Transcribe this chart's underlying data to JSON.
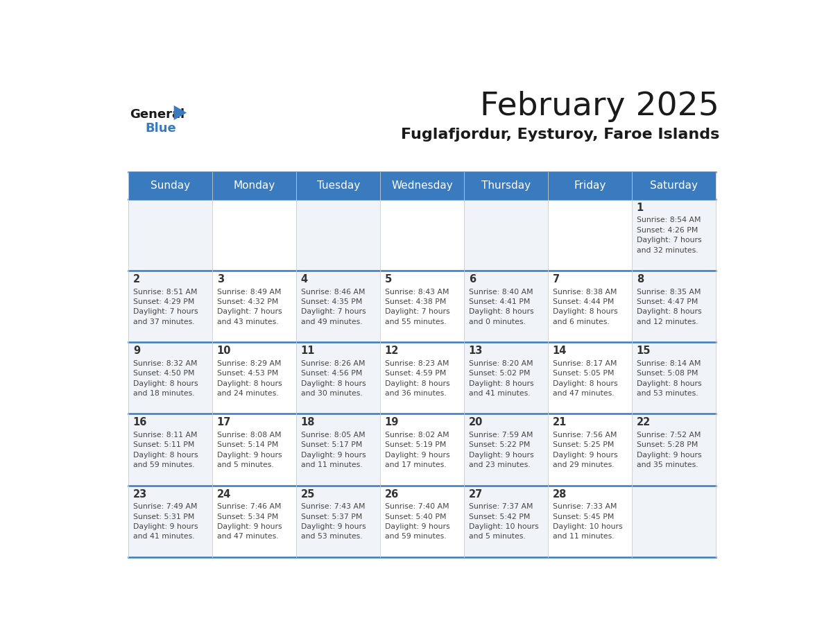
{
  "title": "February 2025",
  "subtitle": "Fuglafjordur, Eysturoy, Faroe Islands",
  "header_color": "#3a7abf",
  "header_text_color": "#ffffff",
  "cell_bg_even": "#f0f4f8",
  "cell_bg_odd": "#ffffff",
  "day_number_color": "#333333",
  "day_text_color": "#444444",
  "border_color": "#3a7abf",
  "weekdays": [
    "Sunday",
    "Monday",
    "Tuesday",
    "Wednesday",
    "Thursday",
    "Friday",
    "Saturday"
  ],
  "calendar_data": [
    [
      {
        "day": "",
        "info": ""
      },
      {
        "day": "",
        "info": ""
      },
      {
        "day": "",
        "info": ""
      },
      {
        "day": "",
        "info": ""
      },
      {
        "day": "",
        "info": ""
      },
      {
        "day": "",
        "info": ""
      },
      {
        "day": "1",
        "info": "Sunrise: 8:54 AM\nSunset: 4:26 PM\nDaylight: 7 hours\nand 32 minutes."
      }
    ],
    [
      {
        "day": "2",
        "info": "Sunrise: 8:51 AM\nSunset: 4:29 PM\nDaylight: 7 hours\nand 37 minutes."
      },
      {
        "day": "3",
        "info": "Sunrise: 8:49 AM\nSunset: 4:32 PM\nDaylight: 7 hours\nand 43 minutes."
      },
      {
        "day": "4",
        "info": "Sunrise: 8:46 AM\nSunset: 4:35 PM\nDaylight: 7 hours\nand 49 minutes."
      },
      {
        "day": "5",
        "info": "Sunrise: 8:43 AM\nSunset: 4:38 PM\nDaylight: 7 hours\nand 55 minutes."
      },
      {
        "day": "6",
        "info": "Sunrise: 8:40 AM\nSunset: 4:41 PM\nDaylight: 8 hours\nand 0 minutes."
      },
      {
        "day": "7",
        "info": "Sunrise: 8:38 AM\nSunset: 4:44 PM\nDaylight: 8 hours\nand 6 minutes."
      },
      {
        "day": "8",
        "info": "Sunrise: 8:35 AM\nSunset: 4:47 PM\nDaylight: 8 hours\nand 12 minutes."
      }
    ],
    [
      {
        "day": "9",
        "info": "Sunrise: 8:32 AM\nSunset: 4:50 PM\nDaylight: 8 hours\nand 18 minutes."
      },
      {
        "day": "10",
        "info": "Sunrise: 8:29 AM\nSunset: 4:53 PM\nDaylight: 8 hours\nand 24 minutes."
      },
      {
        "day": "11",
        "info": "Sunrise: 8:26 AM\nSunset: 4:56 PM\nDaylight: 8 hours\nand 30 minutes."
      },
      {
        "day": "12",
        "info": "Sunrise: 8:23 AM\nSunset: 4:59 PM\nDaylight: 8 hours\nand 36 minutes."
      },
      {
        "day": "13",
        "info": "Sunrise: 8:20 AM\nSunset: 5:02 PM\nDaylight: 8 hours\nand 41 minutes."
      },
      {
        "day": "14",
        "info": "Sunrise: 8:17 AM\nSunset: 5:05 PM\nDaylight: 8 hours\nand 47 minutes."
      },
      {
        "day": "15",
        "info": "Sunrise: 8:14 AM\nSunset: 5:08 PM\nDaylight: 8 hours\nand 53 minutes."
      }
    ],
    [
      {
        "day": "16",
        "info": "Sunrise: 8:11 AM\nSunset: 5:11 PM\nDaylight: 8 hours\nand 59 minutes."
      },
      {
        "day": "17",
        "info": "Sunrise: 8:08 AM\nSunset: 5:14 PM\nDaylight: 9 hours\nand 5 minutes."
      },
      {
        "day": "18",
        "info": "Sunrise: 8:05 AM\nSunset: 5:17 PM\nDaylight: 9 hours\nand 11 minutes."
      },
      {
        "day": "19",
        "info": "Sunrise: 8:02 AM\nSunset: 5:19 PM\nDaylight: 9 hours\nand 17 minutes."
      },
      {
        "day": "20",
        "info": "Sunrise: 7:59 AM\nSunset: 5:22 PM\nDaylight: 9 hours\nand 23 minutes."
      },
      {
        "day": "21",
        "info": "Sunrise: 7:56 AM\nSunset: 5:25 PM\nDaylight: 9 hours\nand 29 minutes."
      },
      {
        "day": "22",
        "info": "Sunrise: 7:52 AM\nSunset: 5:28 PM\nDaylight: 9 hours\nand 35 minutes."
      }
    ],
    [
      {
        "day": "23",
        "info": "Sunrise: 7:49 AM\nSunset: 5:31 PM\nDaylight: 9 hours\nand 41 minutes."
      },
      {
        "day": "24",
        "info": "Sunrise: 7:46 AM\nSunset: 5:34 PM\nDaylight: 9 hours\nand 47 minutes."
      },
      {
        "day": "25",
        "info": "Sunrise: 7:43 AM\nSunset: 5:37 PM\nDaylight: 9 hours\nand 53 minutes."
      },
      {
        "day": "26",
        "info": "Sunrise: 7:40 AM\nSunset: 5:40 PM\nDaylight: 9 hours\nand 59 minutes."
      },
      {
        "day": "27",
        "info": "Sunrise: 7:37 AM\nSunset: 5:42 PM\nDaylight: 10 hours\nand 5 minutes."
      },
      {
        "day": "28",
        "info": "Sunrise: 7:33 AM\nSunset: 5:45 PM\nDaylight: 10 hours\nand 11 minutes."
      },
      {
        "day": "",
        "info": ""
      }
    ]
  ]
}
